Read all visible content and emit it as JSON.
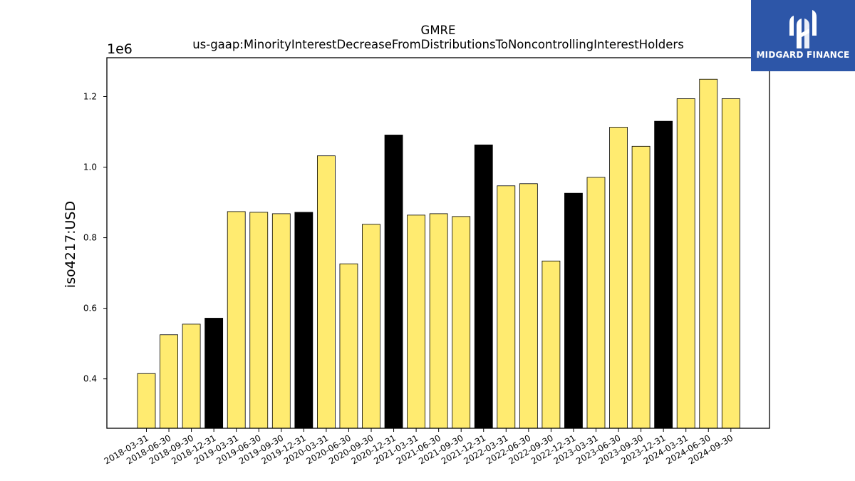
{
  "chart_data": {
    "type": "bar",
    "title": "GMRE",
    "subtitle": "us-gaap:MinorityInterestDecreaseFromDistributionsToNoncontrollingInterestHolders",
    "xlabel": "",
    "ylabel": "iso4217:USD",
    "y_scale_label": "1e6",
    "ylim": [
      0.26,
      1.31
    ],
    "yticks": [
      0.4,
      0.6,
      0.8,
      1.0,
      1.2
    ],
    "ytick_labels": [
      "0.4",
      "0.6",
      "0.8",
      "1.0",
      "1.2"
    ],
    "grid": false,
    "categories": [
      "2018-03-31",
      "2018-06-30",
      "2018-09-30",
      "2018-12-31",
      "2019-03-31",
      "2019-06-30",
      "2019-09-30",
      "2019-12-31",
      "2020-03-31",
      "2020-06-30",
      "2020-09-30",
      "2020-12-31",
      "2021-03-31",
      "2021-06-30",
      "2021-09-30",
      "2021-12-31",
      "2022-03-31",
      "2022-06-30",
      "2022-09-30",
      "2022-12-31",
      "2023-03-31",
      "2023-06-30",
      "2023-09-30",
      "2023-12-31",
      "2024-03-31",
      "2024-06-30",
      "2024-09-30"
    ],
    "values": [
      0.415,
      0.525,
      0.555,
      0.572,
      0.874,
      0.872,
      0.868,
      0.872,
      1.032,
      0.726,
      0.838,
      1.091,
      0.864,
      0.868,
      0.86,
      1.063,
      0.947,
      0.953,
      0.734,
      0.926,
      0.971,
      1.113,
      1.059,
      1.13,
      1.194,
      1.249,
      1.194
    ],
    "highlight_colors": {
      "normal": "#FFEB70",
      "year_end": "#000000",
      "edge": "#000000"
    }
  },
  "branding": {
    "logo_text": "MIDGARD FINANCE",
    "logo_bg": "#2D56A8",
    "logo_fg": "#FFFFFF"
  }
}
